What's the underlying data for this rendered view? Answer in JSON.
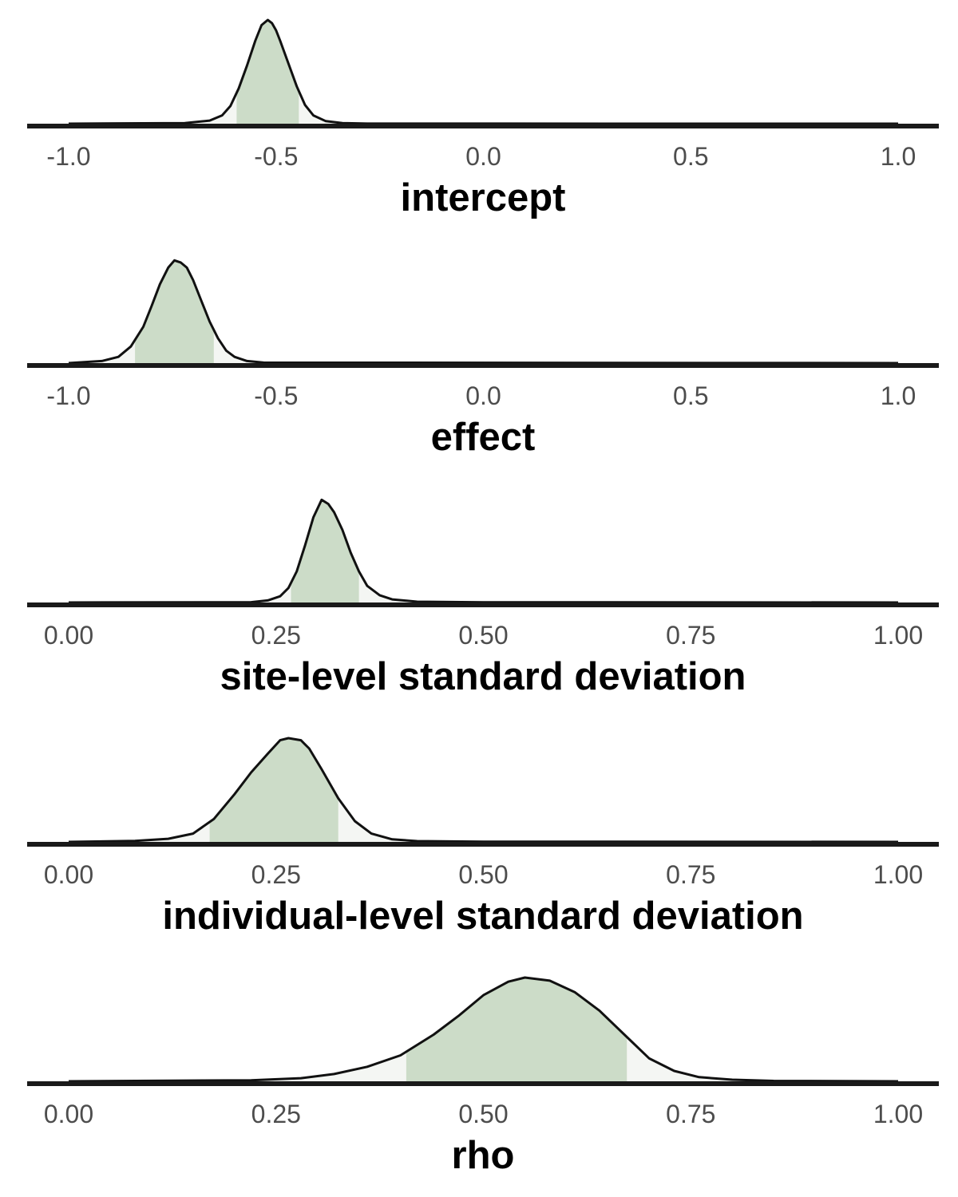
{
  "colors": {
    "fill": "#ccdcc8",
    "tail_fill": "#f4f6f3",
    "outline": "#111111",
    "axis": "#1a1a1a",
    "tick_text": "#4d4d4d"
  },
  "chart_data": [
    {
      "type": "area",
      "xlabel": "intercept",
      "xlim": [
        -1.0,
        1.0
      ],
      "ticks": [
        -1.0,
        -0.5,
        0.0,
        0.5,
        1.0
      ],
      "tick_labels": [
        "-1.0",
        "-0.5",
        "0.0",
        "0.5",
        "1.0"
      ],
      "interval": [
        -0.595,
        -0.445
      ],
      "density": {
        "x": [
          -1.0,
          -0.72,
          -0.66,
          -0.63,
          -0.61,
          -0.59,
          -0.57,
          -0.55,
          -0.535,
          -0.52,
          -0.51,
          -0.5,
          -0.49,
          -0.47,
          -0.45,
          -0.43,
          -0.41,
          -0.38,
          -0.34,
          -0.28,
          1.0
        ],
        "y": [
          0,
          0.005,
          0.03,
          0.08,
          0.17,
          0.34,
          0.56,
          0.8,
          0.95,
          1.0,
          0.97,
          0.9,
          0.8,
          0.58,
          0.36,
          0.18,
          0.08,
          0.025,
          0.006,
          0.001,
          0
        ]
      }
    },
    {
      "type": "area",
      "xlabel": "effect",
      "xlim": [
        -1.0,
        1.0
      ],
      "ticks": [
        -1.0,
        -0.5,
        0.0,
        0.5,
        1.0
      ],
      "tick_labels": [
        "-1.0",
        "-0.5",
        "0.0",
        "0.5",
        "1.0"
      ],
      "interval": [
        -0.84,
        -0.65
      ],
      "density": {
        "x": [
          -1.0,
          -0.92,
          -0.88,
          -0.85,
          -0.82,
          -0.8,
          -0.78,
          -0.76,
          -0.745,
          -0.73,
          -0.715,
          -0.7,
          -0.68,
          -0.66,
          -0.64,
          -0.62,
          -0.6,
          -0.57,
          -0.53,
          1.0
        ],
        "y": [
          0,
          0.02,
          0.06,
          0.16,
          0.35,
          0.55,
          0.76,
          0.92,
          0.99,
          0.97,
          0.92,
          0.8,
          0.6,
          0.4,
          0.24,
          0.12,
          0.06,
          0.02,
          0.005,
          0
        ]
      }
    },
    {
      "type": "area",
      "xlabel": "site-level standard deviation",
      "xlim": [
        0.0,
        1.0
      ],
      "ticks": [
        0.0,
        0.25,
        0.5,
        0.75,
        1.0
      ],
      "tick_labels": [
        "0.00",
        "0.25",
        "0.50",
        "0.75",
        "1.00"
      ],
      "interval": [
        0.268,
        0.35
      ],
      "density": {
        "x": [
          0.0,
          0.22,
          0.24,
          0.255,
          0.265,
          0.275,
          0.285,
          0.295,
          0.305,
          0.313,
          0.32,
          0.33,
          0.34,
          0.35,
          0.36,
          0.375,
          0.39,
          0.42,
          0.5,
          1.0
        ],
        "y": [
          0,
          0.003,
          0.02,
          0.06,
          0.14,
          0.3,
          0.55,
          0.82,
          0.99,
          0.95,
          0.87,
          0.7,
          0.48,
          0.3,
          0.16,
          0.07,
          0.03,
          0.008,
          0.002,
          0
        ]
      }
    },
    {
      "type": "area",
      "xlabel": "individual-level standard deviation",
      "xlim": [
        0.0,
        1.0
      ],
      "ticks": [
        0.0,
        0.25,
        0.5,
        0.75,
        1.0
      ],
      "tick_labels": [
        "0.00",
        "0.25",
        "0.50",
        "0.75",
        "1.00"
      ],
      "interval": [
        0.17,
        0.325
      ],
      "density": {
        "x": [
          0.0,
          0.08,
          0.12,
          0.15,
          0.175,
          0.2,
          0.22,
          0.24,
          0.255,
          0.265,
          0.28,
          0.29,
          0.305,
          0.325,
          0.345,
          0.365,
          0.39,
          0.42,
          0.5,
          1.0
        ],
        "y": [
          0,
          0.01,
          0.03,
          0.08,
          0.22,
          0.46,
          0.67,
          0.85,
          0.98,
          1.0,
          0.98,
          0.9,
          0.7,
          0.42,
          0.2,
          0.08,
          0.025,
          0.008,
          0.002,
          0
        ]
      }
    },
    {
      "type": "area",
      "xlabel": "rho",
      "xlim": [
        0.0,
        1.0
      ],
      "ticks": [
        0.0,
        0.25,
        0.5,
        0.75,
        1.0
      ],
      "tick_labels": [
        "0.00",
        "0.25",
        "0.50",
        "0.75",
        "1.00"
      ],
      "interval": [
        0.407,
        0.673
      ],
      "density": {
        "x": [
          0.0,
          0.22,
          0.28,
          0.32,
          0.36,
          0.4,
          0.44,
          0.47,
          0.5,
          0.53,
          0.55,
          0.58,
          0.61,
          0.64,
          0.67,
          0.7,
          0.73,
          0.76,
          0.8,
          0.85,
          1.0
        ],
        "y": [
          0,
          0.01,
          0.03,
          0.07,
          0.14,
          0.25,
          0.45,
          0.63,
          0.83,
          0.96,
          1.0,
          0.97,
          0.86,
          0.68,
          0.45,
          0.22,
          0.1,
          0.04,
          0.015,
          0.004,
          0
        ]
      }
    }
  ]
}
